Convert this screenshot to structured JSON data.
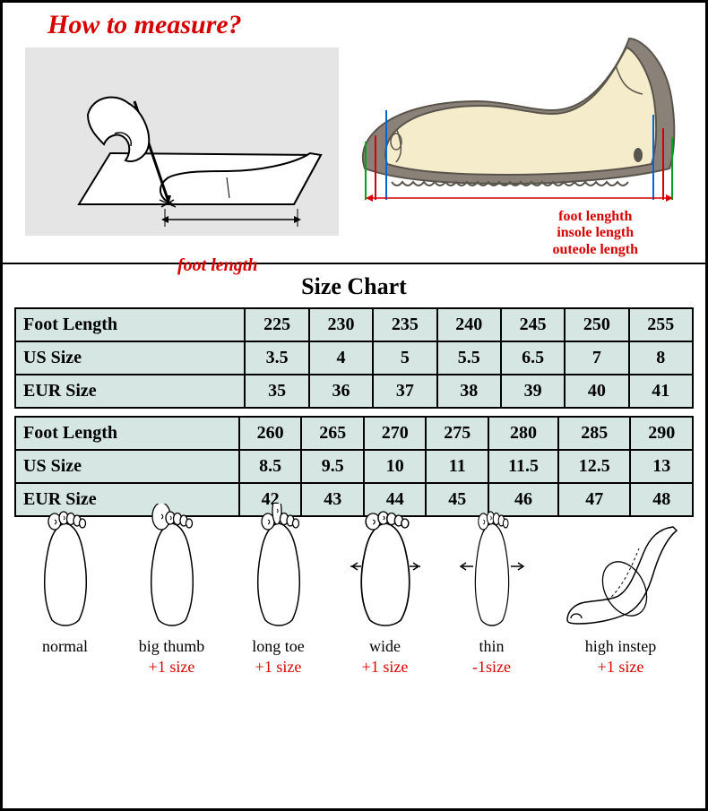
{
  "title": "How to measure?",
  "trace_label": "foot length",
  "shoe_labels": {
    "l1": "foot lenghth",
    "l2": "insole length",
    "l3": "outeole length"
  },
  "chart_title": "Size Chart",
  "table1": {
    "rows": [
      {
        "hdr": "Foot Length",
        "cells": [
          "225",
          "230",
          "235",
          "240",
          "245",
          "250",
          "255"
        ]
      },
      {
        "hdr": "US Size",
        "cells": [
          "3.5",
          "4",
          "5",
          "5.5",
          "6.5",
          "7",
          "8"
        ]
      },
      {
        "hdr": "EUR Size",
        "cells": [
          "35",
          "36",
          "37",
          "38",
          "39",
          "40",
          "41"
        ]
      }
    ]
  },
  "table2": {
    "rows": [
      {
        "hdr": "Foot Length",
        "cells": [
          "260",
          "265",
          "270",
          "275",
          "280",
          "285",
          "290"
        ]
      },
      {
        "hdr": "US Size",
        "cells": [
          "8.5",
          "9.5",
          "10",
          "11",
          "11.5",
          "12.5",
          "13"
        ]
      },
      {
        "hdr": "EUR Size",
        "cells": [
          "42",
          "43",
          "44",
          "45",
          "46",
          "47",
          "48"
        ]
      }
    ]
  },
  "feet": [
    {
      "name": "normal",
      "adj": ""
    },
    {
      "name": "big thumb",
      "adj": "+1 size"
    },
    {
      "name": "long toe",
      "adj": "+1 size"
    },
    {
      "name": "wide",
      "adj": "+1 size"
    },
    {
      "name": "thin",
      "adj": "-1size"
    },
    {
      "name": "high instep",
      "adj": "+1 size"
    }
  ],
  "colors": {
    "red": "#d60000",
    "table_bg": "#d5e6e3",
    "gray_box": "#e5e5e5",
    "shoe_fill": "#f5eccb",
    "shoe_sole": "#8a8278"
  }
}
